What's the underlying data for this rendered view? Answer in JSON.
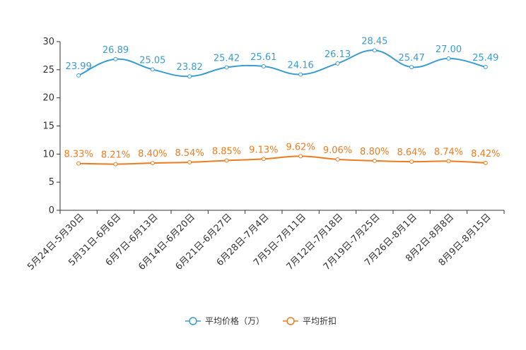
{
  "chart_data": {
    "type": "line",
    "categories": [
      "5月24日-5月30日",
      "5月31日-6月6日",
      "6月7日-6月13日",
      "6月14日-6月20日",
      "6月21日-6月27日",
      "6月28日-7月4日",
      "7月5日-7月11日",
      "7月12日-7月18日",
      "7月19日-7月25日",
      "7月26日-8月1日",
      "8月2日-8月8日",
      "8月9日-8月15日"
    ],
    "ylim": [
      0,
      30
    ],
    "yticks": [
      0,
      5,
      10,
      15,
      20,
      25,
      30
    ],
    "legend_position": "bottom-center",
    "series": [
      {
        "name": "平均价格（万）",
        "color": "#3a9cd0",
        "values": [
          23.99,
          26.89,
          25.05,
          23.82,
          25.42,
          25.61,
          24.16,
          26.13,
          28.45,
          25.47,
          27.0,
          25.49
        ],
        "labels": [
          "23.99",
          "26.89",
          "25.05",
          "23.82",
          "25.42",
          "25.61",
          "24.16",
          "26.13",
          "28.45",
          "25.47",
          "27.00",
          "25.49"
        ]
      },
      {
        "name": "平均折扣",
        "color": "#f07b1e",
        "values": [
          8.33,
          8.21,
          8.4,
          8.54,
          8.85,
          9.13,
          9.62,
          9.06,
          8.8,
          8.64,
          8.74,
          8.42
        ],
        "labels": [
          "8.33%",
          "8.21%",
          "8.40%",
          "8.54%",
          "8.85%",
          "9.13%",
          "9.62%",
          "9.06%",
          "8.80%",
          "8.64%",
          "8.74%",
          "8.42%"
        ]
      }
    ]
  }
}
